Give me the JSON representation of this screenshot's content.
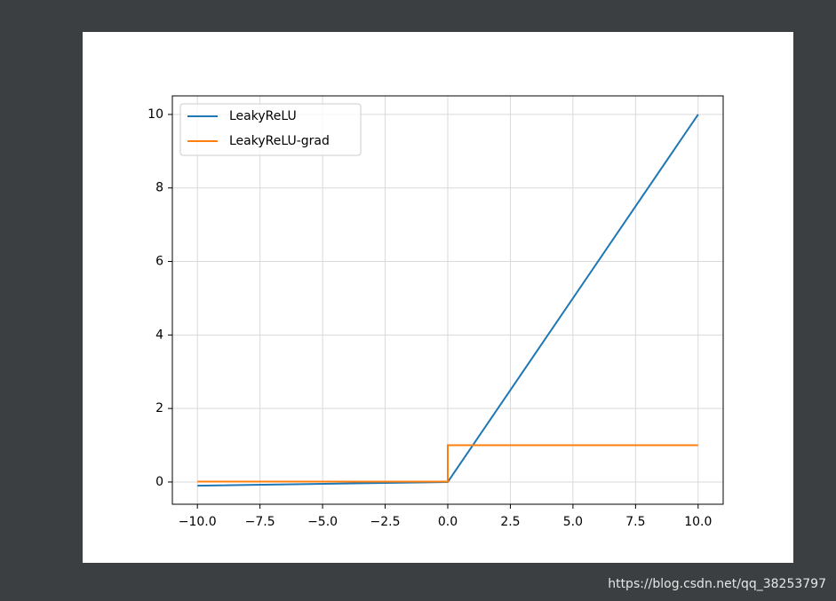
{
  "chart_data": {
    "type": "line",
    "series": [
      {
        "name": "LeakyReLU",
        "color": "#1f77b4",
        "x": [
          -10,
          0,
          10
        ],
        "values": [
          -0.1,
          0,
          10
        ]
      },
      {
        "name": "LeakyReLU-grad",
        "color": "#ff7f0e",
        "x": [
          -10,
          0,
          0,
          10
        ],
        "values": [
          0.01,
          0.01,
          1,
          1
        ]
      }
    ],
    "xlim": [
      -11,
      11
    ],
    "ylim": [
      -0.605,
      10.505
    ],
    "xticks": [
      {
        "value": -10,
        "label": "−10.0"
      },
      {
        "value": -7.5,
        "label": "−7.5"
      },
      {
        "value": -5,
        "label": "−5.0"
      },
      {
        "value": -2.5,
        "label": "−2.5"
      },
      {
        "value": 0,
        "label": "0.0"
      },
      2.5,
      {
        "value": 5,
        "label": "5.0"
      },
      7.5,
      {
        "value": 10,
        "label": "10.0"
      }
    ],
    "yticks": [
      0,
      2,
      4,
      6,
      8,
      10
    ],
    "grid": true,
    "legend": "upper-left"
  },
  "watermark": "https://blog.csdn.net/qq_38253797"
}
